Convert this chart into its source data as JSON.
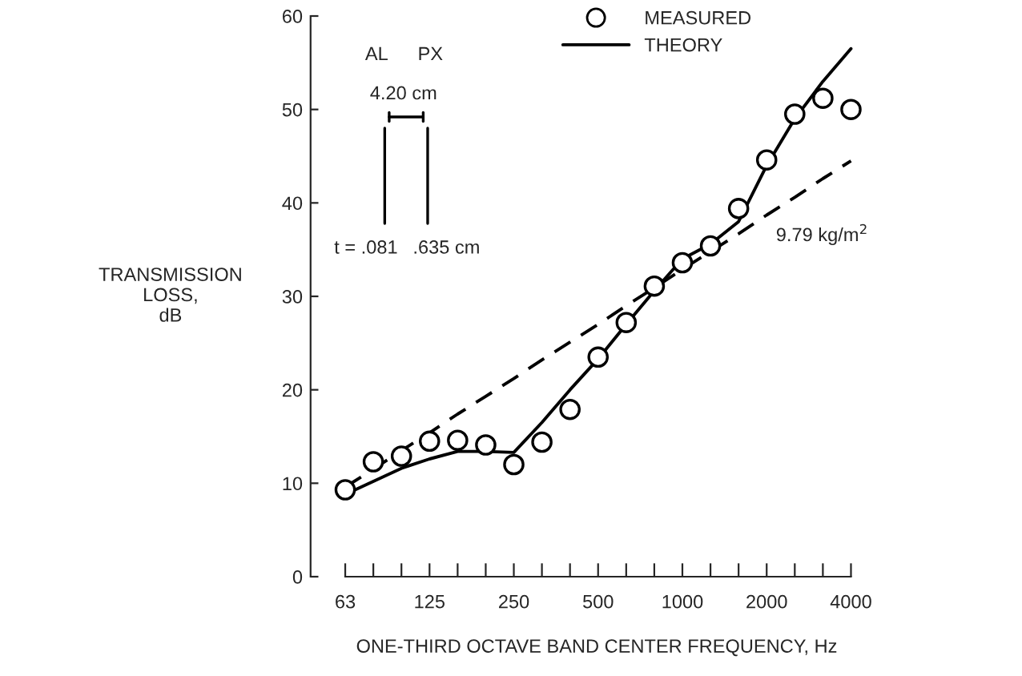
{
  "chart_data": {
    "type": "line",
    "xlabel": "ONE-THIRD OCTAVE BAND CENTER FREQUENCY, Hz",
    "ylabel": "TRANSMISSION\nLOSS,\ndB",
    "categories": [
      "63",
      null,
      null,
      "125",
      null,
      null,
      "250",
      null,
      null,
      "500",
      null,
      null,
      "1000",
      null,
      null,
      "2000",
      null,
      null,
      "4000"
    ],
    "series": [
      {
        "name": "MEASURED",
        "type": "scatter",
        "marker": "circle",
        "color": "#000000",
        "values": [
          9.3,
          12.3,
          12.9,
          14.5,
          14.6,
          14.1,
          12.0,
          14.4,
          17.9,
          23.5,
          27.2,
          31.1,
          33.6,
          35.4,
          39.4,
          44.6,
          49.5,
          51.2,
          50.0
        ]
      },
      {
        "name": "THEORY",
        "line_style": "solid",
        "color": "#000000",
        "values": [
          8.8,
          10.2,
          11.6,
          12.6,
          13.4,
          13.4,
          13.3,
          16.5,
          20.0,
          23.3,
          27.0,
          30.6,
          34.0,
          35.6,
          38.0,
          44.0,
          49.0,
          53.0,
          56.5
        ]
      },
      {
        "line_style": "dashed",
        "color": "#000000",
        "values": [
          9.6,
          11.5,
          13.5,
          15.4,
          17.4,
          19.3,
          21.2,
          23.2,
          25.1,
          27.0,
          29.0,
          30.9,
          32.9,
          34.8,
          36.7,
          38.7,
          40.6,
          42.6,
          44.5
        ]
      }
    ],
    "ylim": [
      0,
      60
    ],
    "yticks": [
      0,
      10,
      20,
      30,
      40,
      50,
      60
    ],
    "grid": false,
    "legend": "top right",
    "annotations": [
      "9.79 kg/m$^{2}$",
      "AL",
      "PX",
      "4.20 cm",
      "t = .081",
      ".635 cm"
    ]
  }
}
